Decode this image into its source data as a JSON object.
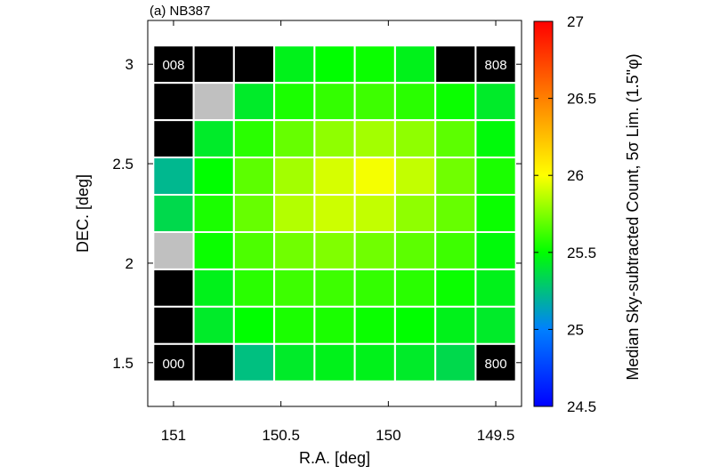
{
  "chart_data": {
    "type": "heatmap",
    "panel_label": "(a) NB387",
    "xlabel": "R.A. [deg]",
    "ylabel": "DEC. [deg]",
    "x_ticks": [
      "151",
      "150.5",
      "150",
      "149.5"
    ],
    "x_tick_values": [
      151,
      150.5,
      150,
      149.5
    ],
    "y_ticks": [
      "3",
      "2.5",
      "2",
      "1.5"
    ],
    "y_tick_values": [
      3,
      2.5,
      2,
      1.5
    ],
    "x_range": [
      151.12,
      149.38
    ],
    "y_range": [
      1.28,
      3.22
    ],
    "grid": {
      "cols": 9,
      "rows": 9,
      "ra_start": 151.0,
      "ra_step": -0.1875,
      "dec_start": 1.5,
      "dec_step": 0.1875
    },
    "colorbar": {
      "label": "Median Sky-subtracted Count, 5σ Lim. (1.5\"φ)",
      "min": 24.5,
      "max": 27,
      "ticks": [
        "27",
        "26.5",
        "26",
        "25.5",
        "25",
        "24.5"
      ],
      "tick_values": [
        27,
        26.5,
        26,
        25.5,
        25,
        24.5
      ]
    },
    "colors": {
      "missing": "#000000",
      "flagged": "#c0c0c0",
      "gridline": "#ffffff"
    },
    "rows_top_to_bottom": [
      [
        null,
        null,
        null,
        25.45,
        25.5,
        25.52,
        25.45,
        null,
        null
      ],
      [
        null,
        "flag",
        25.42,
        25.55,
        25.6,
        25.62,
        25.58,
        25.52,
        25.42
      ],
      [
        null,
        25.42,
        25.58,
        25.7,
        25.78,
        25.82,
        25.78,
        25.68,
        25.48
      ],
      [
        25.22,
        25.5,
        25.68,
        25.82,
        25.92,
        25.98,
        25.88,
        25.72,
        25.55
      ],
      [
        25.35,
        25.55,
        25.7,
        25.85,
        25.9,
        25.88,
        25.78,
        25.7,
        25.52
      ],
      [
        "flag",
        25.52,
        25.65,
        25.72,
        25.75,
        25.72,
        25.68,
        25.62,
        25.48
      ],
      [
        null,
        25.45,
        25.58,
        25.62,
        25.62,
        25.6,
        25.58,
        25.52,
        25.45
      ],
      [
        null,
        25.42,
        25.5,
        25.55,
        25.55,
        25.52,
        25.5,
        25.45,
        25.42
      ],
      [
        null,
        null,
        25.25,
        25.42,
        25.45,
        25.45,
        25.42,
        25.35,
        null
      ]
    ],
    "corner_labels": [
      {
        "text": "008",
        "row": 0,
        "col": 0
      },
      {
        "text": "808",
        "row": 0,
        "col": 8
      },
      {
        "text": "000",
        "row": 8,
        "col": 0
      },
      {
        "text": "800",
        "row": 8,
        "col": 8
      }
    ]
  }
}
